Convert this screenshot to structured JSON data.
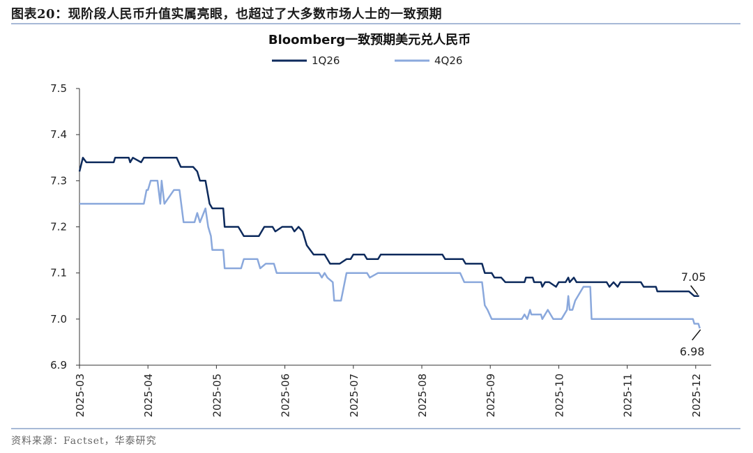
{
  "figure": {
    "label": "图表20：",
    "title": "现阶段人民币升值实属亮眼，也超过了大多数市场人士的一致预期",
    "source": "资料来源：Factset，华泰研究"
  },
  "colors": {
    "series_1q26": "#0d2a5c",
    "series_4q26": "#8aa8dc",
    "axis": "#333333",
    "rule": "#a7b9d6"
  },
  "chart_data": {
    "type": "line",
    "title": "Bloomberg一致预期美元兑人民币",
    "xlabel": "",
    "ylabel": "",
    "ylim": [
      6.9,
      7.5
    ],
    "yticks": [
      "7.5",
      "7.4",
      "7.3",
      "7.2",
      "7.1",
      "7.0",
      "6.9"
    ],
    "xlim": [
      0,
      9.18
    ],
    "xticks": [
      "2025-03",
      "2025-04",
      "2025-05",
      "2025-06",
      "2025-07",
      "2025-08",
      "2025-09",
      "2025-10",
      "2025-11",
      "2025-12"
    ],
    "legend_position": "top-center",
    "series": [
      {
        "name": "1Q26",
        "points": [
          [
            0,
            7.32
          ],
          [
            0.05,
            7.35
          ],
          [
            0.1,
            7.34
          ],
          [
            0.5,
            7.34
          ],
          [
            0.52,
            7.35
          ],
          [
            0.72,
            7.35
          ],
          [
            0.74,
            7.34
          ],
          [
            0.78,
            7.35
          ],
          [
            0.9,
            7.34
          ],
          [
            0.94,
            7.35
          ],
          [
            1.42,
            7.35
          ],
          [
            1.48,
            7.33
          ],
          [
            1.66,
            7.33
          ],
          [
            1.72,
            7.32
          ],
          [
            1.76,
            7.3
          ],
          [
            1.84,
            7.3
          ],
          [
            1.9,
            7.25
          ],
          [
            1.94,
            7.24
          ],
          [
            2.1,
            7.24
          ],
          [
            2.12,
            7.2
          ],
          [
            2.32,
            7.2
          ],
          [
            2.36,
            7.19
          ],
          [
            2.4,
            7.18
          ],
          [
            2.62,
            7.18
          ],
          [
            2.7,
            7.2
          ],
          [
            2.82,
            7.2
          ],
          [
            2.86,
            7.19
          ],
          [
            2.96,
            7.2
          ],
          [
            3.1,
            7.2
          ],
          [
            3.14,
            7.19
          ],
          [
            3.2,
            7.2
          ],
          [
            3.26,
            7.19
          ],
          [
            3.32,
            7.16
          ],
          [
            3.42,
            7.14
          ],
          [
            3.58,
            7.14
          ],
          [
            3.66,
            7.12
          ],
          [
            3.8,
            7.12
          ],
          [
            3.9,
            7.13
          ],
          [
            3.96,
            7.13
          ],
          [
            4.0,
            7.14
          ],
          [
            4.16,
            7.14
          ],
          [
            4.2,
            7.13
          ],
          [
            4.36,
            7.13
          ],
          [
            4.4,
            7.14
          ],
          [
            5.3,
            7.14
          ],
          [
            5.34,
            7.13
          ],
          [
            5.6,
            7.13
          ],
          [
            5.64,
            7.12
          ],
          [
            5.88,
            7.12
          ],
          [
            5.92,
            7.1
          ],
          [
            6.02,
            7.1
          ],
          [
            6.06,
            7.09
          ],
          [
            6.16,
            7.09
          ],
          [
            6.22,
            7.08
          ],
          [
            6.5,
            7.08
          ],
          [
            6.52,
            7.09
          ],
          [
            6.62,
            7.09
          ],
          [
            6.64,
            7.08
          ],
          [
            6.74,
            7.08
          ],
          [
            6.76,
            7.07
          ],
          [
            6.8,
            7.08
          ],
          [
            6.86,
            7.08
          ],
          [
            6.96,
            7.07
          ],
          [
            7.0,
            7.08
          ],
          [
            7.1,
            7.08
          ],
          [
            7.14,
            7.09
          ],
          [
            7.16,
            7.08
          ],
          [
            7.22,
            7.09
          ],
          [
            7.26,
            7.08
          ],
          [
            7.7,
            7.08
          ],
          [
            7.74,
            7.07
          ],
          [
            7.8,
            7.08
          ],
          [
            7.86,
            7.07
          ],
          [
            7.9,
            7.08
          ],
          [
            8.2,
            7.08
          ],
          [
            8.24,
            7.07
          ],
          [
            8.42,
            7.07
          ],
          [
            8.44,
            7.06
          ],
          [
            8.9,
            7.06
          ],
          [
            8.98,
            7.05
          ],
          [
            9.05,
            7.05
          ]
        ]
      },
      {
        "name": "4Q26",
        "points": [
          [
            0,
            7.25
          ],
          [
            0.94,
            7.25
          ],
          [
            0.98,
            7.28
          ],
          [
            1.0,
            7.28
          ],
          [
            1.04,
            7.3
          ],
          [
            1.14,
            7.3
          ],
          [
            1.18,
            7.25
          ],
          [
            1.2,
            7.3
          ],
          [
            1.24,
            7.25
          ],
          [
            1.38,
            7.28
          ],
          [
            1.46,
            7.28
          ],
          [
            1.52,
            7.21
          ],
          [
            1.68,
            7.21
          ],
          [
            1.72,
            7.23
          ],
          [
            1.76,
            7.21
          ],
          [
            1.84,
            7.24
          ],
          [
            1.88,
            7.2
          ],
          [
            1.92,
            7.18
          ],
          [
            1.94,
            7.15
          ],
          [
            2.1,
            7.15
          ],
          [
            2.12,
            7.11
          ],
          [
            2.36,
            7.11
          ],
          [
            2.4,
            7.13
          ],
          [
            2.6,
            7.13
          ],
          [
            2.64,
            7.11
          ],
          [
            2.72,
            7.12
          ],
          [
            2.84,
            7.12
          ],
          [
            2.88,
            7.1
          ],
          [
            3.5,
            7.1
          ],
          [
            3.54,
            7.09
          ],
          [
            3.58,
            7.1
          ],
          [
            3.62,
            7.09
          ],
          [
            3.7,
            7.08
          ],
          [
            3.72,
            7.04
          ],
          [
            3.82,
            7.04
          ],
          [
            3.9,
            7.1
          ],
          [
            4.2,
            7.1
          ],
          [
            4.24,
            7.09
          ],
          [
            4.36,
            7.1
          ],
          [
            5.56,
            7.1
          ],
          [
            5.62,
            7.08
          ],
          [
            5.88,
            7.08
          ],
          [
            5.92,
            7.03
          ],
          [
            5.96,
            7.02
          ],
          [
            6.02,
            7.0
          ],
          [
            6.46,
            7.0
          ],
          [
            6.5,
            7.01
          ],
          [
            6.54,
            7.0
          ],
          [
            6.58,
            7.02
          ],
          [
            6.6,
            7.01
          ],
          [
            6.74,
            7.01
          ],
          [
            6.76,
            7.0
          ],
          [
            6.8,
            7.01
          ],
          [
            6.84,
            7.02
          ],
          [
            6.92,
            7.0
          ],
          [
            7.04,
            7.0
          ],
          [
            7.08,
            7.01
          ],
          [
            7.12,
            7.02
          ],
          [
            7.14,
            7.05
          ],
          [
            7.16,
            7.02
          ],
          [
            7.2,
            7.02
          ],
          [
            7.24,
            7.04
          ],
          [
            7.36,
            7.07
          ],
          [
            7.46,
            7.07
          ],
          [
            7.48,
            7.0
          ],
          [
            8.96,
            7.0
          ],
          [
            8.98,
            6.99
          ],
          [
            9.04,
            6.99
          ],
          [
            9.06,
            6.98
          ]
        ]
      }
    ],
    "annotations": [
      {
        "series": "1Q26",
        "text": "7.05",
        "value": 7.05
      },
      {
        "series": "4Q26",
        "text": "6.98",
        "value": 6.98
      }
    ]
  }
}
